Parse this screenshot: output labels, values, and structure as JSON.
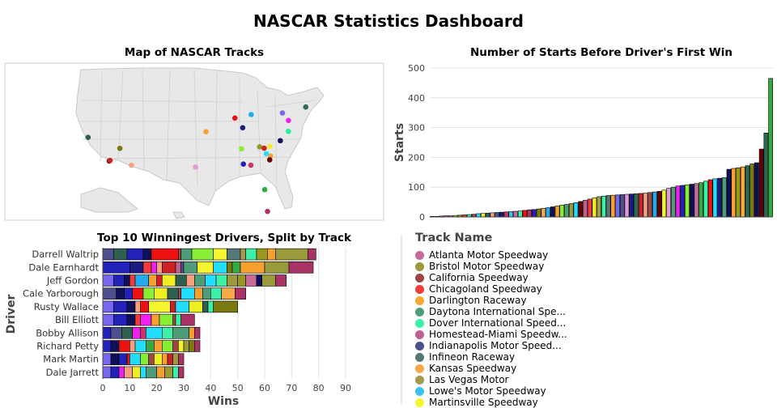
{
  "dashboard": {
    "title": "NASCAR Statistics Dashboard",
    "map_title": "Map of NASCAR Tracks",
    "starts_title": "Number of Starts Before Driver's First Win",
    "wins_title": "Top 10 Winningest Drivers, Split by Track",
    "legend_title": "Track Name"
  },
  "tracks": [
    {
      "name": "Atlanta Motor Speedway",
      "label": "Atlanta Motor Speedway",
      "color": "#c76b98"
    },
    {
      "name": "Bristol Motor Speedway",
      "label": "Bristol Motor Speedway",
      "color": "#9a9a3a"
    },
    {
      "name": "California Speedway",
      "label": "California Speedway",
      "color": "#a04545"
    },
    {
      "name": "Chicagoland Speedway",
      "label": "Chicagoland Speedway",
      "color": "#f23b3b"
    },
    {
      "name": "Darlington Raceway",
      "label": "Darlington Raceway",
      "color": "#f6a830"
    },
    {
      "name": "Daytona International Speedway",
      "label": "Daytona International Spe...",
      "color": "#4f9d78"
    },
    {
      "name": "Dover International Speedway",
      "label": "Dover International Speed...",
      "color": "#3df0a8"
    },
    {
      "name": "Homestead-Miami Speedway",
      "label": "Homestead-Miami Speedw...",
      "color": "#c06090"
    },
    {
      "name": "Indianapolis Motor Speedway",
      "label": "Indianapolis Motor Speed...",
      "color": "#4d4f8f"
    },
    {
      "name": "Infineon Raceway",
      "label": "Infineon Raceway",
      "color": "#557777"
    },
    {
      "name": "Kansas Speedway",
      "label": "Kansas Speedway",
      "color": "#f8a848"
    },
    {
      "name": "Las Vegas Motor",
      "label": "Las Vegas Motor",
      "color": "#a39a4a"
    },
    {
      "name": "Lowe's Motor Speedway",
      "label": "Lowe's Motor Speedway",
      "color": "#38c4ee"
    },
    {
      "name": "Martinsville Speedway",
      "label": "Martinsville Speedway",
      "color": "#f5f530"
    }
  ],
  "map_markers": [
    {
      "track": "Sonoma",
      "lon": -122.45,
      "lat": 38.16,
      "color": "#2f5f50"
    },
    {
      "track": "California A",
      "lon": -117.5,
      "lat": 34.09,
      "color": "#5a1a1a"
    },
    {
      "track": "California B",
      "lon": -117.3,
      "lat": 34.2,
      "color": "#cc2222"
    },
    {
      "track": "Las Vegas",
      "lon": -115.0,
      "lat": 36.27,
      "color": "#7a7a10"
    },
    {
      "track": "Phoenix",
      "lon": -112.3,
      "lat": 33.37,
      "color": "#f6a07e"
    },
    {
      "track": "Texas",
      "lon": -97.28,
      "lat": 33.04,
      "color": "#e09ad8"
    },
    {
      "track": "Kansas",
      "lon": -94.83,
      "lat": 39.12,
      "color": "#f8a030"
    },
    {
      "track": "Chicagoland",
      "lon": -88.06,
      "lat": 41.47,
      "color": "#ee1111"
    },
    {
      "track": "Indianapolis",
      "lon": -86.23,
      "lat": 39.8,
      "color": "#1a1a80"
    },
    {
      "track": "Michigan",
      "lon": -84.24,
      "lat": 42.07,
      "color": "#22aaee"
    },
    {
      "track": "Talladega",
      "lon": -86.07,
      "lat": 33.57,
      "color": "#2222bb"
    },
    {
      "track": "Atlanta",
      "lon": -84.32,
      "lat": 33.38,
      "color": "#cc3366"
    },
    {
      "track": "Nashville",
      "lon": -86.5,
      "lat": 36.2,
      "color": "#88ee33"
    },
    {
      "track": "Bristol",
      "lon": -82.26,
      "lat": 36.52,
      "color": "#999922"
    },
    {
      "track": "Charlotte",
      "lon": -80.68,
      "lat": 35.35,
      "color": "#22ddff"
    },
    {
      "track": "North Wilkesboro",
      "lon": -81.2,
      "lat": 36.3,
      "color": "#cc2222"
    },
    {
      "track": "Martinsville",
      "lon": -79.85,
      "lat": 36.63,
      "color": "#eeee22"
    },
    {
      "track": "Rockingham",
      "lon": -79.7,
      "lat": 34.95,
      "color": "#f6a030"
    },
    {
      "track": "Richmond",
      "lon": -77.42,
      "lat": 37.59,
      "color": "#10105a"
    },
    {
      "track": "Darlington",
      "lon": -79.9,
      "lat": 34.3,
      "color": "#660000"
    },
    {
      "track": "Dover",
      "lon": -75.53,
      "lat": 39.19,
      "color": "#22ee99"
    },
    {
      "track": "Pocono",
      "lon": -75.51,
      "lat": 41.05,
      "color": "#ee22ee"
    },
    {
      "track": "Watkins Glen",
      "lon": -76.92,
      "lat": 42.34,
      "color": "#7766ee"
    },
    {
      "track": "New Hampshire",
      "lon": -71.46,
      "lat": 43.36,
      "color": "#2a6a50"
    },
    {
      "track": "Daytona",
      "lon": -81.07,
      "lat": 29.19,
      "color": "#33aa44"
    },
    {
      "track": "Homestead",
      "lon": -80.41,
      "lat": 25.45,
      "color": "#aa3366"
    }
  ],
  "chart_data": [
    {
      "type": "bar",
      "title": "Number of Starts Before Driver's First Win",
      "xlabel": "",
      "ylabel": "Starts",
      "ylim": [
        0,
        500
      ],
      "yticks": [
        0,
        100,
        200,
        300,
        400,
        500
      ],
      "values": [
        2,
        2,
        3,
        4,
        4,
        5,
        6,
        7,
        8,
        9,
        11,
        12,
        13,
        14,
        15,
        16,
        17,
        18,
        19,
        20,
        22,
        24,
        25,
        27,
        29,
        31,
        34,
        37,
        40,
        42,
        45,
        48,
        52,
        56,
        60,
        64,
        68,
        70,
        72,
        73,
        74,
        75,
        76,
        77,
        78,
        79,
        80,
        82,
        84,
        86,
        90,
        96,
        100,
        104,
        106,
        108,
        110,
        112,
        115,
        120,
        125,
        128,
        130,
        132,
        160,
        163,
        165,
        168,
        172,
        178,
        182,
        228,
        282,
        465
      ],
      "colors": [
        "#1a1a80",
        "#f6a030",
        "#ee22ee",
        "#7766ee",
        "#c06090",
        "#88ee33",
        "#999922",
        "#f23b3b",
        "#3df0a8",
        "#a04545",
        "#22ddff",
        "#eeee22",
        "#2a6a50",
        "#f6a07e",
        "#4d4f8f",
        "#1a1a80",
        "#cc3366",
        "#38c4ee",
        "#c76b98",
        "#3df0a8",
        "#ee1111",
        "#aa3366",
        "#2222bb",
        "#7a7a10",
        "#f8a848",
        "#22aaee",
        "#10105a",
        "#f6a030",
        "#88ee33",
        "#4f9d78",
        "#9a9a3a",
        "#22ddff",
        "#660000",
        "#c06090",
        "#f23b3b",
        "#eeee22",
        "#a39a4a",
        "#3df0a8",
        "#557777",
        "#f8a030",
        "#7766ee",
        "#4d4f8f",
        "#e09ad8",
        "#1a1a80",
        "#2a6a50",
        "#cc2222",
        "#f6a07e",
        "#a04545",
        "#22aaee",
        "#660000",
        "#f5f530",
        "#e09ad8",
        "#4f9d78",
        "#ee22ee",
        "#2222bb",
        "#88ee33",
        "#10105a",
        "#c76b98",
        "#33aa44",
        "#3df0a8",
        "#ee1111",
        "#22ddff",
        "#1a1a80",
        "#4f9d78",
        "#10105a",
        "#f6a030",
        "#999922",
        "#f8a848",
        "#2a6a50",
        "#7a7a10",
        "#10105a",
        "#660000",
        "#2a6a50",
        "#33aa44"
      ]
    },
    {
      "type": "bar",
      "orientation": "horizontal",
      "stacked": true,
      "title": "Top 10 Winningest Drivers, Split by Track",
      "xlabel": "Wins",
      "ylabel": "Driver",
      "xlim": [
        0,
        90
      ],
      "xticks": [
        0,
        10,
        20,
        30,
        40,
        50,
        60,
        70,
        80,
        90
      ],
      "categories": [
        "Darrell Waltrip",
        "Dale Earnhardt",
        "Jeff Gordon",
        "Cale Yarborough",
        "Rusty Wallace",
        "Bill Elliott",
        "Bobby Allison",
        "Richard Petty",
        "Mark Martin",
        "Dale Jarrett"
      ],
      "segments": [
        [
          [
            "#4d4f8f",
            4
          ],
          [
            "#2f5f50",
            5
          ],
          [
            "#2222bb",
            6
          ],
          [
            "#10105a",
            3
          ],
          [
            "#ee1111",
            10
          ],
          [
            "#a04545",
            1
          ],
          [
            "#4f9d78",
            4
          ],
          [
            "#88ee33",
            8
          ],
          [
            "#f5f530",
            5
          ],
          [
            "#557777",
            5
          ],
          [
            "#a39a4a",
            2
          ],
          [
            "#3df0a8",
            4
          ],
          [
            "#999922",
            4
          ],
          [
            "#f6a030",
            3
          ],
          [
            "#9a9a3a",
            12
          ],
          [
            "#aa3366",
            3
          ]
        ],
        [
          [
            "#2222bb",
            10
          ],
          [
            "#1a1a80",
            5
          ],
          [
            "#f23b3b",
            3
          ],
          [
            "#ee22ee",
            2
          ],
          [
            "#f6a07e",
            2
          ],
          [
            "#cc2222",
            5
          ],
          [
            "#c06090",
            2
          ],
          [
            "#4d4f8f",
            1
          ],
          [
            "#4f9d78",
            5
          ],
          [
            "#f5f530",
            6
          ],
          [
            "#22ddff",
            5
          ],
          [
            "#7a7a10",
            2
          ],
          [
            "#33aa44",
            3
          ],
          [
            "#f6a030",
            9
          ],
          [
            "#9a9a3a",
            9
          ],
          [
            "#aa3366",
            9
          ]
        ],
        [
          [
            "#7766ee",
            4
          ],
          [
            "#2222bb",
            4
          ],
          [
            "#10105a",
            2
          ],
          [
            "#f23b3b",
            2
          ],
          [
            "#22aaee",
            5
          ],
          [
            "#f6a030",
            3
          ],
          [
            "#cc2222",
            2
          ],
          [
            "#eeee22",
            5
          ],
          [
            "#2f5f50",
            4
          ],
          [
            "#f6a07e",
            3
          ],
          [
            "#4f9d78",
            4
          ],
          [
            "#22ddff",
            4
          ],
          [
            "#3df0a8",
            4
          ],
          [
            "#9a9a3a",
            4
          ],
          [
            "#999922",
            3
          ],
          [
            "#c76b98",
            4
          ],
          [
            "#10105a",
            2
          ],
          [
            "#9a9a3a",
            5
          ],
          [
            "#aa3366",
            4
          ]
        ],
        [
          [
            "#4d4f8f",
            5
          ],
          [
            "#10105a",
            3
          ],
          [
            "#2222bb",
            3
          ],
          [
            "#ee1111",
            4
          ],
          [
            "#88ee33",
            4
          ],
          [
            "#eeee22",
            5
          ],
          [
            "#2f5f50",
            4
          ],
          [
            "#a04545",
            1
          ],
          [
            "#22ddff",
            5
          ],
          [
            "#f6a030",
            3
          ],
          [
            "#4f9d78",
            3
          ],
          [
            "#3df0a8",
            4
          ],
          [
            "#f8a848",
            5
          ],
          [
            "#aa3366",
            4
          ]
        ],
        [
          [
            "#7766ee",
            4
          ],
          [
            "#2222bb",
            5
          ],
          [
            "#10105a",
            3
          ],
          [
            "#f6a07e",
            2
          ],
          [
            "#ee1111",
            3
          ],
          [
            "#f5f530",
            8
          ],
          [
            "#cc2222",
            2
          ],
          [
            "#22ddff",
            5
          ],
          [
            "#eeee22",
            5
          ],
          [
            "#2f5f50",
            2
          ],
          [
            "#3df0a8",
            2
          ],
          [
            "#7a7a10",
            9
          ]
        ],
        [
          [
            "#7766ee",
            4
          ],
          [
            "#2222bb",
            5
          ],
          [
            "#10105a",
            3
          ],
          [
            "#f23b3b",
            2
          ],
          [
            "#ee22ee",
            4
          ],
          [
            "#f6a030",
            3
          ],
          [
            "#88ee33",
            5
          ],
          [
            "#a04545",
            1
          ],
          [
            "#3df0a8",
            2
          ],
          [
            "#aa3366",
            5
          ]
        ],
        [
          [
            "#2222bb",
            3
          ],
          [
            "#4d4f8f",
            4
          ],
          [
            "#2f5f50",
            4
          ],
          [
            "#ee22ee",
            3
          ],
          [
            "#cc3366",
            2
          ],
          [
            "#22ddff",
            6
          ],
          [
            "#3df0a8",
            4
          ],
          [
            "#4f9d78",
            6
          ],
          [
            "#f6a030",
            2
          ],
          [
            "#aa3366",
            2
          ]
        ],
        [
          [
            "#2222bb",
            3
          ],
          [
            "#10105a",
            3
          ],
          [
            "#ee1111",
            4
          ],
          [
            "#f6a07e",
            2
          ],
          [
            "#22ddff",
            4
          ],
          [
            "#33aa44",
            3
          ],
          [
            "#f6a030",
            3
          ],
          [
            "#88ee33",
            4
          ],
          [
            "#a04545",
            2
          ],
          [
            "#f5f530",
            2
          ],
          [
            "#9a9a3a",
            2
          ],
          [
            "#7a7a10",
            2
          ],
          [
            "#aa3366",
            2
          ]
        ],
        [
          [
            "#7766ee",
            3
          ],
          [
            "#10105a",
            3
          ],
          [
            "#2222bb",
            3
          ],
          [
            "#ee1111",
            1
          ],
          [
            "#22ddff",
            4
          ],
          [
            "#88ee33",
            3
          ],
          [
            "#a04545",
            2
          ],
          [
            "#eeee22",
            3
          ],
          [
            "#f6a030",
            2
          ],
          [
            "#cc2222",
            2
          ],
          [
            "#9a9a3a",
            2
          ],
          [
            "#aa3366",
            2
          ]
        ],
        [
          [
            "#7766ee",
            3
          ],
          [
            "#2222bb",
            3
          ],
          [
            "#ee22ee",
            2
          ],
          [
            "#f6a07e",
            3
          ],
          [
            "#eeee22",
            3
          ],
          [
            "#22ddff",
            2
          ],
          [
            "#4f9d78",
            4
          ],
          [
            "#f6a030",
            3
          ],
          [
            "#9a9a3a",
            3
          ],
          [
            "#3df0a8",
            2
          ],
          [
            "#aa3366",
            2
          ]
        ]
      ]
    }
  ]
}
